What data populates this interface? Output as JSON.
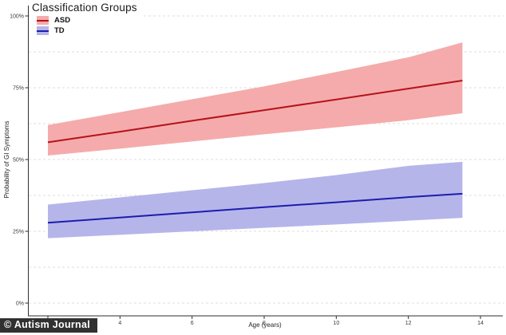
{
  "watermark": "© Autism Journal",
  "chart_data": {
    "type": "line",
    "legend_title": "Classification Groups",
    "legend_position": "top-left",
    "xlabel": "Age (years)",
    "ylabel": "Probability of GI Symptoms",
    "xlim": [
      2,
      14
    ],
    "ylim": [
      0,
      100
    ],
    "x_ticks": [
      2,
      4,
      6,
      8,
      10,
      12,
      14
    ],
    "y_tick_labels": [
      "0%",
      "25%",
      "50%",
      "75%",
      "100%"
    ],
    "y_tick_values": [
      0,
      25,
      50,
      75,
      100
    ],
    "y_gridlines": [
      0,
      12.5,
      25,
      37.5,
      50,
      62.5,
      75,
      87.5,
      100
    ],
    "grid_style": "horizontal dashed",
    "colors": {
      "grid": "#dcdcdc",
      "axis": "#2f2f2f",
      "tick_label": "#3a3a3a",
      "asd_line": "#b5121b",
      "asd_band": "#f5abab",
      "td_line": "#1c1cb0",
      "td_band": "#b5b5ea"
    },
    "series": [
      {
        "name": "ASD",
        "line_color": "#b5121b",
        "band_color": "#f5abab",
        "x": [
          2,
          4,
          6,
          8,
          10,
          12,
          13.5
        ],
        "y": [
          56.0,
          59.7,
          63.5,
          67.2,
          70.9,
          74.7,
          77.5
        ],
        "ci_low": [
          51.4,
          53.8,
          56.3,
          58.8,
          61.2,
          63.7,
          66.1
        ],
        "ci_high": [
          62.0,
          66.5,
          71.0,
          75.5,
          80.5,
          85.6,
          90.8
        ]
      },
      {
        "name": "TD",
        "line_color": "#1c1cb0",
        "band_color": "#b5b5ea",
        "x": [
          2,
          4,
          6,
          8,
          10,
          12,
          13.5
        ],
        "y": [
          28.0,
          29.8,
          31.6,
          33.4,
          35.1,
          36.9,
          38.1
        ],
        "ci_low": [
          22.6,
          23.8,
          25.0,
          26.2,
          27.4,
          28.7,
          29.7
        ],
        "ci_high": [
          34.3,
          36.8,
          39.3,
          41.8,
          44.6,
          47.8,
          49.2
        ]
      }
    ]
  }
}
